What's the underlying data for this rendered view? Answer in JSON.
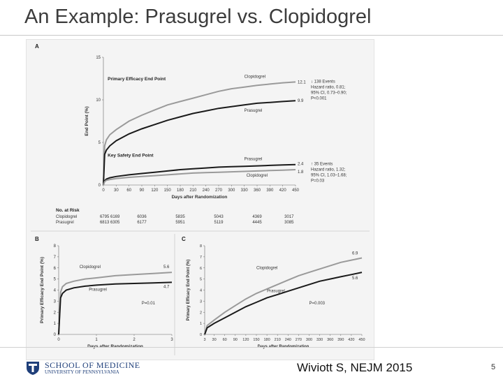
{
  "slide": {
    "title": "An Example: Prasugrel vs. Clopidogrel",
    "citation": "Wiviott S, NEJM 2015",
    "page_number": "5",
    "logo_line1": "SCHOOL OF MEDICINE",
    "logo_line2": "UNIVERSITY OF PENNSYLVANIA"
  },
  "colors": {
    "clopidogrel": "#9a9a9a",
    "prasugrel": "#1a1a1a",
    "accent": "#1f3f7a"
  },
  "chart_data": [
    {
      "panel": "A",
      "type": "line",
      "xlabel": "Days after Randomization",
      "ylabel": "End Point (%)",
      "xticks": [
        0,
        30,
        60,
        90,
        120,
        150,
        180,
        210,
        240,
        270,
        300,
        330,
        360,
        390,
        420,
        450
      ],
      "yticks": [
        0,
        5,
        10,
        15
      ],
      "xlim": [
        0,
        450
      ],
      "ylim": [
        0,
        15
      ],
      "groups": [
        {
          "title": "Primary Efficacy End Point",
          "series": [
            {
              "name": "Clopidogrel",
              "color_key": "clopidogrel",
              "end_label": "12.1",
              "x": [
                0,
                3,
                7,
                15,
                30,
                60,
                90,
                120,
                150,
                180,
                210,
                240,
                270,
                300,
                330,
                360,
                390,
                420,
                450
              ],
              "y": [
                0,
                4.6,
                5.3,
                5.9,
                6.5,
                7.5,
                8.2,
                8.8,
                9.4,
                9.8,
                10.2,
                10.6,
                11.0,
                11.3,
                11.5,
                11.7,
                11.85,
                12.0,
                12.1
              ]
            },
            {
              "name": "Prasugrel",
              "color_key": "prasugrel",
              "end_label": "9.9",
              "x": [
                0,
                3,
                7,
                15,
                30,
                60,
                90,
                120,
                150,
                180,
                210,
                240,
                270,
                300,
                330,
                360,
                390,
                420,
                450
              ],
              "y": [
                0,
                3.6,
                4.1,
                4.6,
                5.2,
                6.0,
                6.6,
                7.1,
                7.6,
                8.0,
                8.4,
                8.7,
                9.0,
                9.2,
                9.4,
                9.6,
                9.7,
                9.8,
                9.9
              ]
            }
          ],
          "annotation": [
            "↓ 138 Events",
            "Hazard ratio, 0.81;",
            "95% CI, 0.73–0.90;",
            "P<0.001"
          ]
        },
        {
          "title": "Key Safety End Point",
          "series": [
            {
              "name": "Prasugrel",
              "color_key": "prasugrel",
              "end_label": "2.4",
              "x": [
                0,
                3,
                7,
                15,
                30,
                60,
                90,
                120,
                150,
                180,
                210,
                240,
                270,
                300,
                330,
                360,
                390,
                420,
                450
              ],
              "y": [
                0,
                0.5,
                0.7,
                0.85,
                1.0,
                1.2,
                1.35,
                1.5,
                1.65,
                1.8,
                1.9,
                2.0,
                2.1,
                2.15,
                2.2,
                2.25,
                2.3,
                2.35,
                2.4
              ]
            },
            {
              "name": "Clopidogrel",
              "color_key": "clopidogrel",
              "end_label": "1.8",
              "x": [
                0,
                3,
                7,
                15,
                30,
                60,
                90,
                120,
                150,
                180,
                210,
                240,
                270,
                300,
                330,
                360,
                390,
                420,
                450
              ],
              "y": [
                0,
                0.4,
                0.55,
                0.65,
                0.75,
                0.9,
                1.0,
                1.1,
                1.2,
                1.3,
                1.4,
                1.45,
                1.5,
                1.55,
                1.6,
                1.65,
                1.7,
                1.75,
                1.8
              ]
            }
          ],
          "annotation": [
            "↑ 35 Events",
            "Hazard ratio, 1.32;",
            "95% CI, 1.03–1.68;",
            "P=0.03"
          ]
        }
      ],
      "at_risk": {
        "title": "No. at Risk",
        "rows": [
          {
            "name": "Clopidogrel",
            "values": [
              "6795 6169",
              "6036",
              "5835",
              "5043",
              "4369",
              "3017"
            ]
          },
          {
            "name": "Prasugrel",
            "values": [
              "6813 6305",
              "6177",
              "5951",
              "5119",
              "4445",
              "3085"
            ]
          }
        ]
      }
    },
    {
      "panel": "B",
      "type": "line",
      "xlabel": "Days after Randomization",
      "ylabel": "Primary Efficacy End Point (%)",
      "xticks": [
        0,
        1,
        2,
        3
      ],
      "yticks": [
        0,
        1,
        2,
        3,
        4,
        5,
        6,
        7,
        8
      ],
      "xlim": [
        0,
        3
      ],
      "ylim": [
        0,
        8
      ],
      "series": [
        {
          "name": "Clopidogrel",
          "color_key": "clopidogrel",
          "end_label": "5.6",
          "x": [
            0,
            0.05,
            0.1,
            0.2,
            0.4,
            0.7,
            1.0,
            1.5,
            2.0,
            2.5,
            3.0
          ],
          "y": [
            0,
            3.8,
            4.3,
            4.6,
            4.8,
            5.0,
            5.1,
            5.3,
            5.4,
            5.5,
            5.6
          ]
        },
        {
          "name": "Prasugrel",
          "color_key": "prasugrel",
          "end_label": "4.7",
          "x": [
            0,
            0.05,
            0.1,
            0.2,
            0.4,
            0.7,
            1.0,
            1.5,
            2.0,
            2.5,
            3.0
          ],
          "y": [
            0,
            3.3,
            3.7,
            4.0,
            4.2,
            4.35,
            4.45,
            4.55,
            4.6,
            4.65,
            4.7
          ]
        }
      ],
      "annotation": [
        "P=0.01"
      ]
    },
    {
      "panel": "C",
      "type": "line",
      "xlabel": "Days after Randomization",
      "ylabel": "Primary Efficacy End Point (%)",
      "xticks": [
        3,
        30,
        60,
        90,
        120,
        150,
        180,
        210,
        240,
        270,
        300,
        330,
        360,
        390,
        420,
        450
      ],
      "yticks": [
        0,
        1,
        2,
        3,
        4,
        5,
        6,
        7,
        8
      ],
      "xlim": [
        3,
        450
      ],
      "ylim": [
        0,
        8
      ],
      "series": [
        {
          "name": "Clopidogrel",
          "color_key": "clopidogrel",
          "end_label": "6.9",
          "x": [
            3,
            10,
            30,
            60,
            90,
            120,
            150,
            180,
            210,
            240,
            270,
            300,
            330,
            360,
            390,
            420,
            450
          ],
          "y": [
            0,
            0.8,
            1.3,
            2.0,
            2.6,
            3.2,
            3.7,
            4.1,
            4.5,
            4.9,
            5.3,
            5.6,
            5.9,
            6.2,
            6.5,
            6.7,
            6.9
          ]
        },
        {
          "name": "Prasugrel",
          "color_key": "prasugrel",
          "end_label": "5.6",
          "x": [
            3,
            10,
            30,
            60,
            90,
            120,
            150,
            180,
            210,
            240,
            270,
            300,
            330,
            360,
            390,
            420,
            450
          ],
          "y": [
            0,
            0.6,
            1.0,
            1.5,
            2.0,
            2.5,
            2.9,
            3.3,
            3.6,
            3.9,
            4.2,
            4.5,
            4.8,
            5.0,
            5.2,
            5.4,
            5.6
          ]
        }
      ],
      "annotation": [
        "P=0.003"
      ]
    }
  ]
}
